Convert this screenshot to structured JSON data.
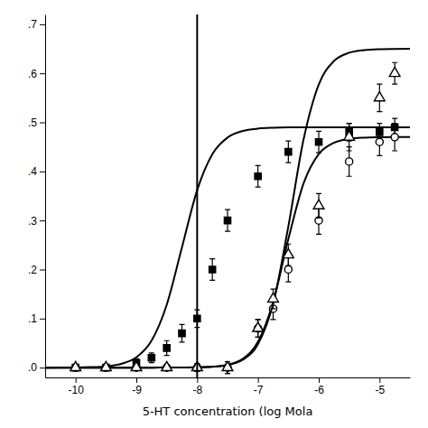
{
  "chart_data": {
    "type": "scatter",
    "xlabel": "5-HT concentration (log Mola",
    "xlim": [
      -10.5,
      -4.5
    ],
    "ylim": [
      -0.02,
      0.72
    ],
    "xticks": [
      -10,
      -9,
      -8,
      -7,
      -6,
      -5
    ],
    "yticks": [
      {
        "value": 0.0,
        "label": ".0"
      },
      {
        "value": 0.1,
        "label": ".1"
      },
      {
        "value": 0.2,
        "label": ".2"
      },
      {
        "value": 0.3,
        "label": ".3"
      },
      {
        "value": 0.4,
        "label": ".4"
      },
      {
        "value": 0.5,
        "label": ".5"
      },
      {
        "value": 0.6,
        "label": ".6"
      },
      {
        "value": 0.7,
        "label": ".7"
      }
    ],
    "vlines": [
      -8.0
    ],
    "series": [
      {
        "marker": "square",
        "color": "#000000",
        "x": [
          -10,
          -9.5,
          -9,
          -8.75,
          -8.5,
          -8.25,
          -8.0,
          -7.75,
          -7.5,
          -7.0,
          -6.5,
          -6.0,
          -5.5,
          -5.0,
          -4.75
        ],
        "values": [
          0.0,
          0.0,
          0.01,
          0.02,
          0.04,
          0.07,
          0.1,
          0.2,
          0.3,
          0.39,
          0.44,
          0.46,
          0.48,
          0.48,
          0.49
        ],
        "errors": [
          0.004,
          0.004,
          0.008,
          0.01,
          0.015,
          0.018,
          0.018,
          0.022,
          0.022,
          0.022,
          0.022,
          0.022,
          0.018,
          0.018,
          0.018
        ],
        "curve": {
          "x": [
            -10.5,
            -10.25,
            -10,
            -9.75,
            -9.5,
            -9.25,
            -9,
            -8.75,
            -8.5,
            -8.25,
            -8,
            -7.75,
            -7.5,
            -7.25,
            -7,
            -6.75,
            -6.5,
            -6.25,
            -6,
            -5.75,
            -5.5,
            -5.25,
            -5,
            -4.75,
            -4.5
          ],
          "values": [
            0,
            0.0001,
            0.0003,
            0.001,
            0.0027,
            0.0076,
            0.0209,
            0.0548,
            0.1283,
            0.245,
            0.3617,
            0.4352,
            0.469,
            0.4824,
            0.4873,
            0.489,
            0.4897,
            0.4899,
            0.49,
            0.49,
            0.49,
            0.49,
            0.49,
            0.49,
            0.49
          ]
        }
      },
      {
        "marker": "circle-open",
        "color": "#000000",
        "x": [
          -10,
          -9.5,
          -9,
          -8.5,
          -8.0,
          -7.5,
          -7.0,
          -6.75,
          -6.5,
          -6.0,
          -5.5,
          -5.0,
          -4.75
        ],
        "values": [
          0.0,
          0.0,
          0.0,
          0.0,
          0.0,
          0.0,
          0.08,
          0.12,
          0.2,
          0.3,
          0.42,
          0.46,
          0.47
        ],
        "errors": [
          0.003,
          0.003,
          0.003,
          0.003,
          0.008,
          0.012,
          0.018,
          0.022,
          0.025,
          0.028,
          0.03,
          0.028,
          0.028
        ],
        "curve": {
          "x": [
            -10.5,
            -10.25,
            -10,
            -9.75,
            -9.5,
            -9.25,
            -9,
            -8.75,
            -8.5,
            -8.25,
            -8,
            -7.75,
            -7.5,
            -7.25,
            -7,
            -6.75,
            -6.5,
            -6.25,
            -6,
            -5.75,
            -5.5,
            -5.25,
            -5,
            -4.75,
            -4.5
          ],
          "values": [
            0,
            0,
            0,
            0,
            0,
            0,
            0,
            0,
            0.0001,
            0.0002,
            0.0006,
            0.0019,
            0.0058,
            0.018,
            0.0526,
            0.1338,
            0.2619,
            0.3756,
            0.4354,
            0.4585,
            0.4663,
            0.4688,
            0.4696,
            0.4699,
            0.47
          ]
        }
      },
      {
        "marker": "triangle-open",
        "color": "#000000",
        "x": [
          -10,
          -9.5,
          -9,
          -8.5,
          -8.0,
          -7.5,
          -7.0,
          -6.75,
          -6.5,
          -6.0,
          -5.5,
          -5.0,
          -4.75
        ],
        "values": [
          0.0,
          0.0,
          0.0,
          0.0,
          0.0,
          0.0,
          0.08,
          0.14,
          0.23,
          0.33,
          0.47,
          0.55,
          0.6
        ],
        "errors": [
          0.003,
          0.003,
          0.003,
          0.003,
          0.008,
          0.012,
          0.018,
          0.02,
          0.022,
          0.025,
          0.028,
          0.028,
          0.022
        ],
        "curve": {
          "x": [
            -10.5,
            -10.25,
            -10,
            -9.75,
            -9.5,
            -9.25,
            -9,
            -8.75,
            -8.5,
            -8.25,
            -8,
            -7.75,
            -7.5,
            -7.25,
            -7,
            -6.75,
            -6.5,
            -6.25,
            -6,
            -5.75,
            -5.5,
            -5.25,
            -5,
            -4.75,
            -4.5
          ],
          "values": [
            0,
            0,
            0,
            0,
            0,
            0,
            0,
            0,
            0.0001,
            0.0002,
            0.0005,
            0.0016,
            0.0051,
            0.0159,
            0.0478,
            0.1305,
            0.2878,
            0.4649,
            0.5773,
            0.6251,
            0.6419,
            0.6474,
            0.6492,
            0.6497,
            0.6499
          ]
        }
      }
    ]
  }
}
